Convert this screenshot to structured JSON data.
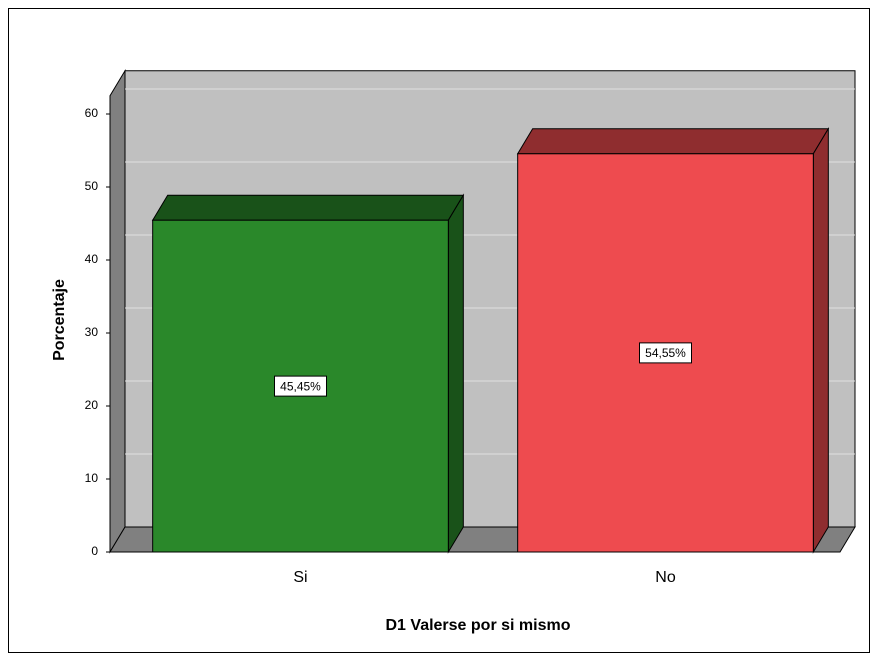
{
  "chart_data": {
    "type": "bar3d",
    "x_label": "D1 Valerse por si mismo",
    "y_label": "Porcentaje",
    "categories": [
      "Si",
      "No"
    ],
    "values": [
      45.45,
      54.55
    ],
    "value_labels": [
      "45,45%",
      "54,55%"
    ],
    "colors": [
      "#2a882a",
      "#ee4b4f"
    ],
    "ylim": [
      0,
      62.5
    ],
    "yticks": [
      0,
      10,
      20,
      30,
      40,
      50,
      60
    ],
    "grid": true
  }
}
